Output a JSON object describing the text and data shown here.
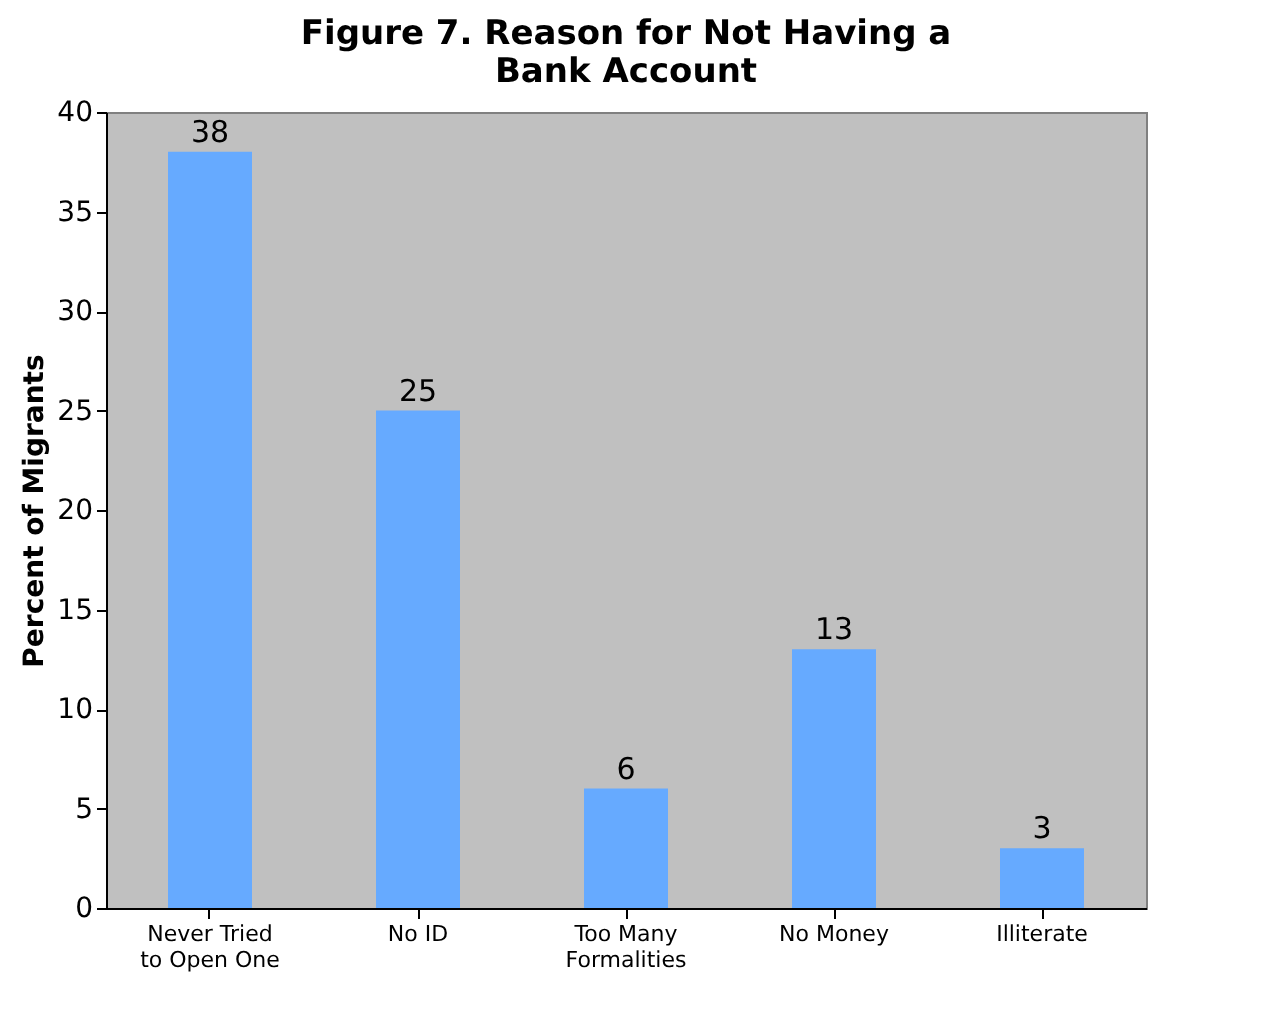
{
  "chart_data": {
    "type": "bar",
    "title": "Figure 7. Reason for Not Having a Bank Account",
    "ylabel": "Percent of Migrants",
    "categories": [
      "Never Tried\nto Open One",
      "No ID",
      "Too Many\nFormalities",
      "No Money",
      "Illiterate"
    ],
    "values": [
      38,
      25,
      6,
      13,
      3
    ],
    "color": "#66aaff",
    "ylim": [
      0,
      40
    ],
    "yticks": [
      0,
      5,
      10,
      15,
      20,
      25,
      30,
      35,
      40
    ],
    "grid": false,
    "data_labels": true
  }
}
